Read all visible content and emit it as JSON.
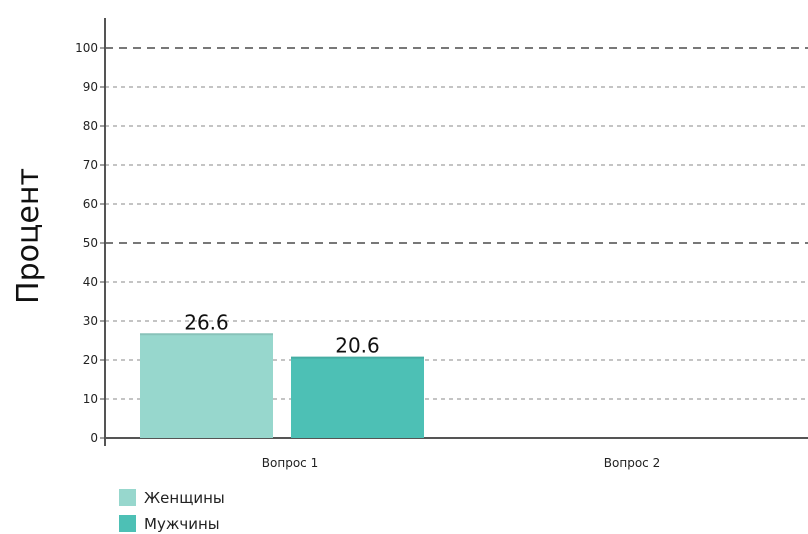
{
  "chart_data": {
    "type": "bar",
    "categories": [
      "Вопрос 1",
      "Вопрос 2"
    ],
    "series": [
      {
        "name": "Женщины",
        "values": [
          26.6,
          null
        ],
        "color": "#97d7cd"
      },
      {
        "name": "Мужчины",
        "values": [
          20.6,
          null
        ],
        "color": "#4dc0b5"
      }
    ],
    "data_labels": [
      "26.6",
      "20.6"
    ],
    "title": "",
    "xlabel": "",
    "ylabel": "Процент",
    "ylim": [
      0,
      100
    ],
    "yticks": [
      0,
      10,
      20,
      30,
      40,
      50,
      60,
      70,
      80,
      90,
      100
    ],
    "grid": "horizontal dashed",
    "legend_position": "bottom-left"
  }
}
